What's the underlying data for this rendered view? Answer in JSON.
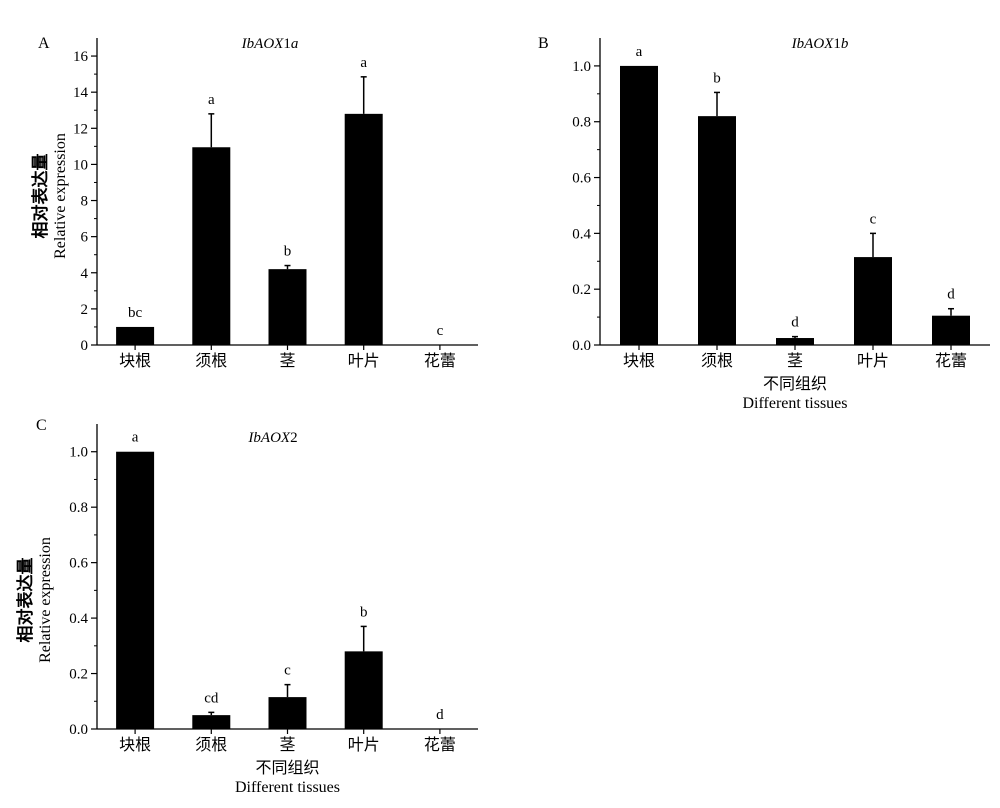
{
  "chart_data": [
    {
      "panel": "A",
      "type": "bar",
      "title": "IbAOX1a",
      "title_parts": [
        [
          "IbAOX",
          true
        ],
        [
          "1",
          false
        ],
        [
          "a",
          true
        ]
      ],
      "categories": [
        "块根",
        "须根",
        "茎",
        "叶片",
        "花蕾"
      ],
      "values": [
        1.0,
        10.95,
        4.2,
        12.8,
        0.0
      ],
      "errors": [
        0.0,
        1.85,
        0.2,
        2.05,
        0.0
      ],
      "significance": [
        "bc",
        "a",
        "b",
        "a",
        "c"
      ],
      "ylim": [
        0,
        17
      ],
      "yticks": [
        0,
        2,
        4,
        6,
        8,
        10,
        12,
        14,
        16
      ],
      "ytick_labels": [
        "0",
        "2",
        "4",
        "6",
        "8",
        "10",
        "12",
        "14",
        "16"
      ],
      "ylabel_zh": "相对表达量",
      "ylabel_en": "Relative expression",
      "xlabel_zh": "",
      "xlabel_en": ""
    },
    {
      "panel": "B",
      "type": "bar",
      "title": "IbAOX1b",
      "title_parts": [
        [
          "IbAOX",
          true
        ],
        [
          "1",
          false
        ],
        [
          "b",
          true
        ]
      ],
      "categories": [
        "块根",
        "须根",
        "茎",
        "叶片",
        "花蕾"
      ],
      "values": [
        1.0,
        0.82,
        0.025,
        0.315,
        0.105
      ],
      "errors": [
        0.0,
        0.085,
        0.005,
        0.085,
        0.025
      ],
      "significance": [
        "a",
        "b",
        "d",
        "c",
        "d"
      ],
      "ylim": [
        0,
        1.1
      ],
      "yticks": [
        0,
        0.2,
        0.4,
        0.6,
        0.8,
        1.0
      ],
      "ytick_labels": [
        "0.0",
        "0.2",
        "0.4",
        "0.6",
        "0.8",
        "1.0"
      ],
      "ylabel_zh": "",
      "ylabel_en": "",
      "xlabel_zh": "不同组织",
      "xlabel_en": "Different tissues"
    },
    {
      "panel": "C",
      "type": "bar",
      "title": "IbAOX2",
      "title_parts": [
        [
          "IbAOX",
          true
        ],
        [
          "2",
          false
        ]
      ],
      "categories": [
        "块根",
        "须根",
        "茎",
        "叶片",
        "花蕾"
      ],
      "values": [
        1.0,
        0.05,
        0.115,
        0.28,
        0.0
      ],
      "errors": [
        0.0,
        0.01,
        0.045,
        0.09,
        0.0
      ],
      "significance": [
        "a",
        "cd",
        "c",
        "b",
        "d"
      ],
      "ylim": [
        0,
        1.1
      ],
      "yticks": [
        0,
        0.2,
        0.4,
        0.6,
        0.8,
        1.0
      ],
      "ytick_labels": [
        "0.0",
        "0.2",
        "0.4",
        "0.6",
        "0.8",
        "1.0"
      ],
      "ylabel_zh": "相对表达量",
      "ylabel_en": "Relative expression",
      "xlabel_zh": "不同组织",
      "xlabel_en": "Different tissues"
    }
  ],
  "colors": {
    "bar": "#000000",
    "axis": "#000000",
    "background": "#ffffff"
  }
}
